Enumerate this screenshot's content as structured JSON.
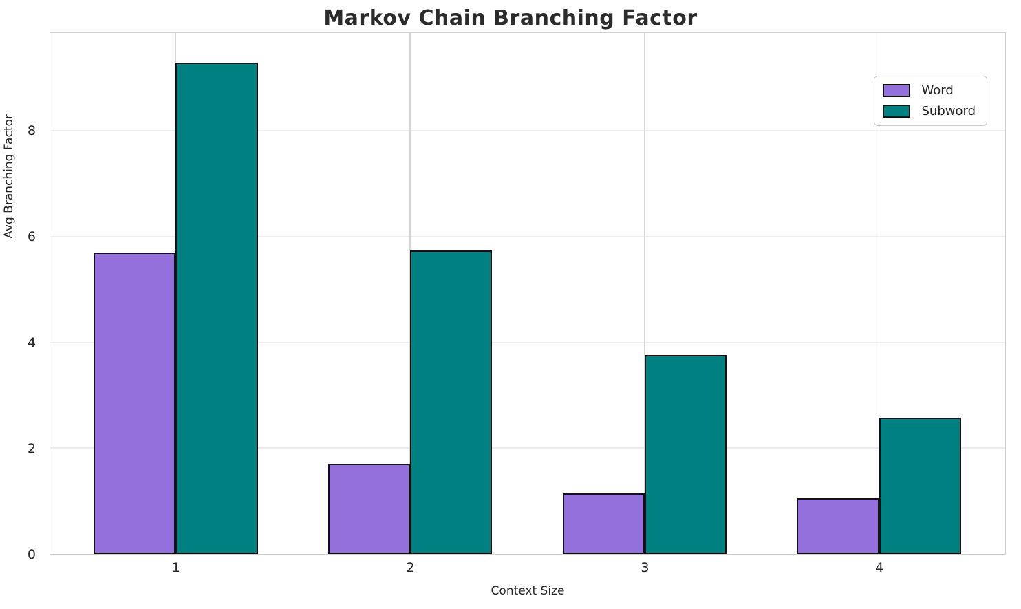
{
  "title": "Markov Chain Branching Factor",
  "axes": {
    "xlabel": "Context Size",
    "ylabel": "Avg Branching Factor"
  },
  "colors": {
    "word": "#9370DB",
    "subword": "#008080",
    "bar_edge": "#111111",
    "grid_horizontal": "#ececec",
    "grid_vertical": "#d6d6d6",
    "spine": "#cfcfcf",
    "text": "#262626"
  },
  "legend": {
    "items": [
      {
        "label": "Word",
        "color": "#9370DB"
      },
      {
        "label": "Subword",
        "color": "#008080"
      }
    ]
  },
  "chart_data": {
    "type": "bar",
    "title": "Markov Chain Branching Factor",
    "xlabel": "Context Size",
    "ylabel": "Avg Branching Factor",
    "categories": [
      "1",
      "2",
      "3",
      "4"
    ],
    "series": [
      {
        "name": "Word",
        "color": "#9370DB",
        "values": [
          5.7,
          1.7,
          1.15,
          1.05
        ]
      },
      {
        "name": "Subword",
        "color": "#008080",
        "values": [
          9.28,
          5.74,
          3.76,
          2.57
        ]
      }
    ],
    "ylim": [
      0,
      9.83
    ],
    "yticks": [
      0,
      2,
      4,
      6,
      8
    ],
    "grid": true,
    "legend_position": "upper right",
    "bar_width_frac": 0.35
  }
}
